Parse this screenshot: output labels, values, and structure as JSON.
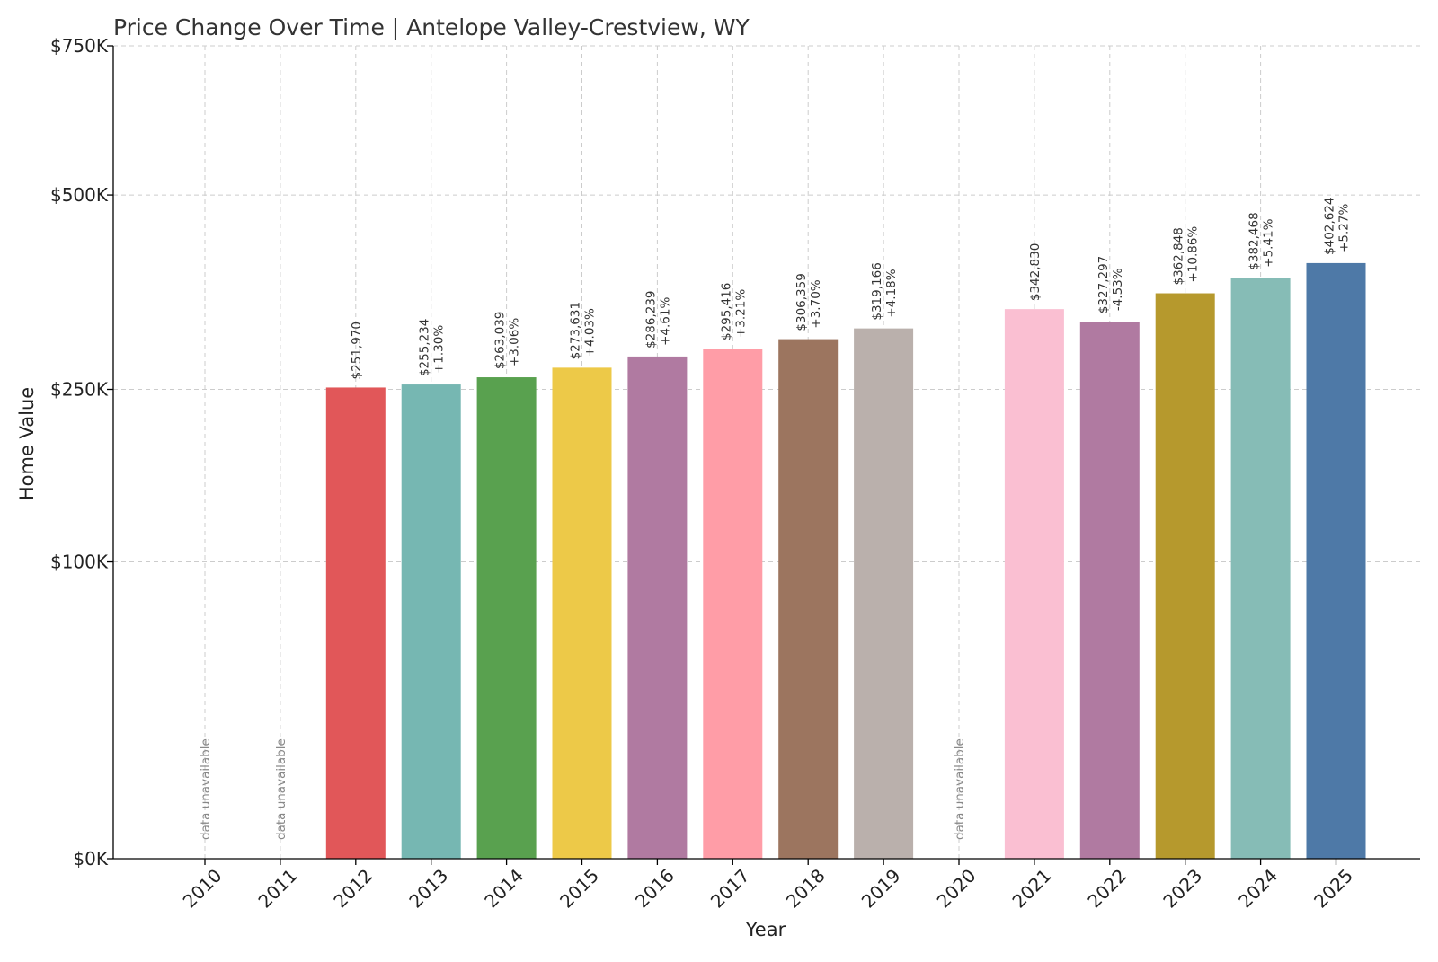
{
  "chart_data": {
    "type": "bar",
    "title": "Price Change Over Time | Antelope Valley-Crestview, WY",
    "xlabel": "Year",
    "ylabel": "Home Value",
    "ylim": [
      0,
      750000
    ],
    "y_scale": "sqrt",
    "grid": true,
    "yticks": [
      {
        "value": 0,
        "label": "$0K"
      },
      {
        "value": 100000,
        "label": "$100K"
      },
      {
        "value": 250000,
        "label": "$250K"
      },
      {
        "value": 500000,
        "label": "$500K"
      },
      {
        "value": 750000,
        "label": "$750K"
      }
    ],
    "categories": [
      "2010",
      "2011",
      "2012",
      "2013",
      "2014",
      "2015",
      "2016",
      "2017",
      "2018",
      "2019",
      "2020",
      "2021",
      "2022",
      "2023",
      "2024",
      "2025"
    ],
    "values": [
      null,
      null,
      251970,
      255234,
      263039,
      273631,
      286239,
      295416,
      306359,
      319166,
      null,
      342830,
      327297,
      362848,
      382468,
      402624
    ],
    "value_labels": [
      "",
      "",
      "$251,970",
      "$255,234",
      "$263,039",
      "$273,631",
      "$286,239",
      "$295,416",
      "$306,359",
      "$319,166",
      "",
      "$342,830",
      "$327,297",
      "$362,848",
      "$382,468",
      "$402,624"
    ],
    "change_labels": [
      "",
      "",
      "",
      "+1.30%",
      "+3.06%",
      "+4.03%",
      "+4.61%",
      "+3.21%",
      "+3.70%",
      "+4.18%",
      "",
      "",
      "-4.53%",
      "+10.86%",
      "+5.41%",
      "+5.27%"
    ],
    "missing_label": "data unavailable",
    "colors": [
      "#e15759",
      "#76b7b2",
      "#59a14f",
      "#edc948",
      "#b07aa1",
      "#ff9da7",
      "#9c755f",
      "#bab0ac",
      "#fabfd2",
      "#b07aa1",
      "#b6992d",
      "#86bcb6",
      "#4e79a7"
    ]
  }
}
